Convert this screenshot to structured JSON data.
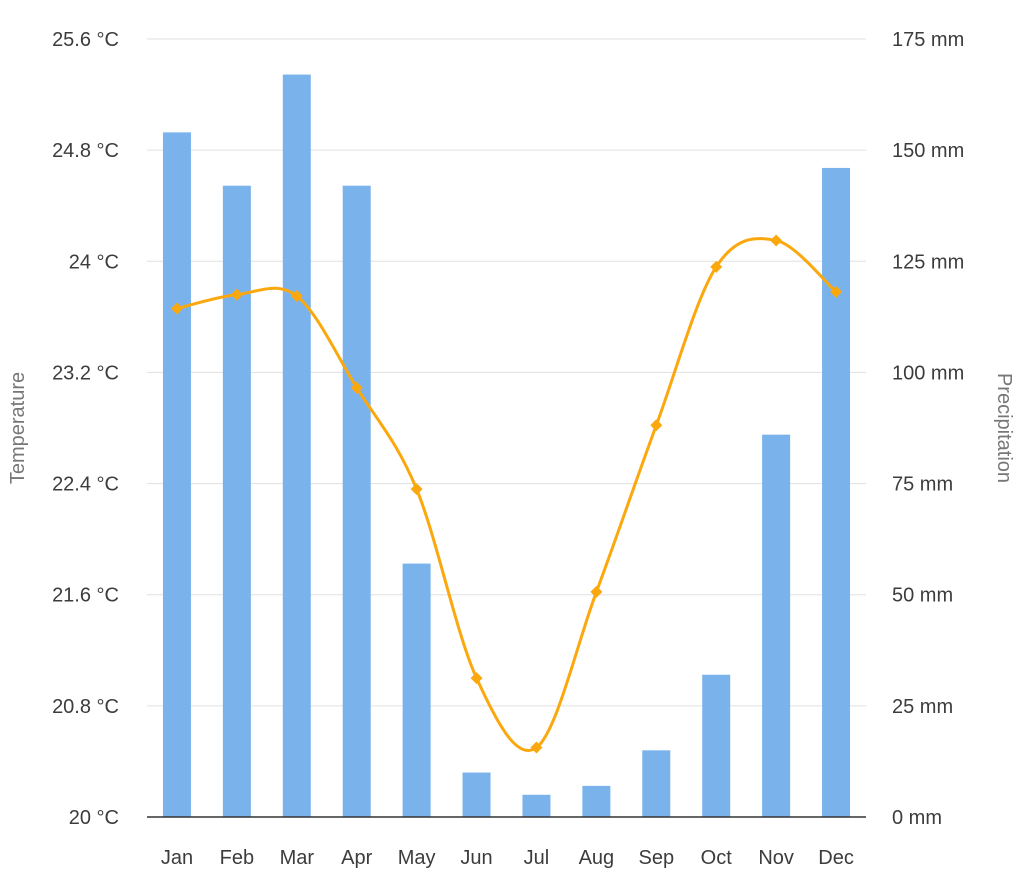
{
  "chart_data": {
    "type": "bar",
    "categories": [
      "Jan",
      "Feb",
      "Mar",
      "Apr",
      "May",
      "Jun",
      "Jul",
      "Aug",
      "Sep",
      "Oct",
      "Nov",
      "Dec"
    ],
    "series": [
      {
        "name": "Precipitation",
        "type": "bar",
        "axis": "right",
        "color": "#7ab3ec",
        "values": [
          154,
          142,
          167,
          142,
          57,
          10,
          5,
          7,
          15,
          32,
          86,
          146
        ]
      },
      {
        "name": "Temperature",
        "type": "line",
        "axis": "left",
        "color": "#fba80e",
        "smooth": true,
        "values": [
          23.66,
          23.76,
          23.75,
          23.09,
          22.36,
          21.0,
          20.5,
          21.62,
          22.82,
          23.96,
          24.15,
          23.78
        ]
      }
    ],
    "y_left": {
      "label": "Temperature",
      "range": [
        20,
        25.6
      ],
      "ticks": [
        "25.6 °C",
        "24.8 °C",
        "24 °C",
        "23.2 °C",
        "22.4 °C",
        "21.6 °C",
        "20.8 °C",
        "20 °C"
      ]
    },
    "y_right": {
      "label": "Precipitation",
      "range": [
        0,
        175
      ],
      "ticks": [
        "175 mm",
        "150 mm",
        "125 mm",
        "100 mm",
        "75 mm",
        "50 mm",
        "25 mm",
        "0 mm"
      ]
    },
    "grid": true,
    "legend": "none"
  }
}
